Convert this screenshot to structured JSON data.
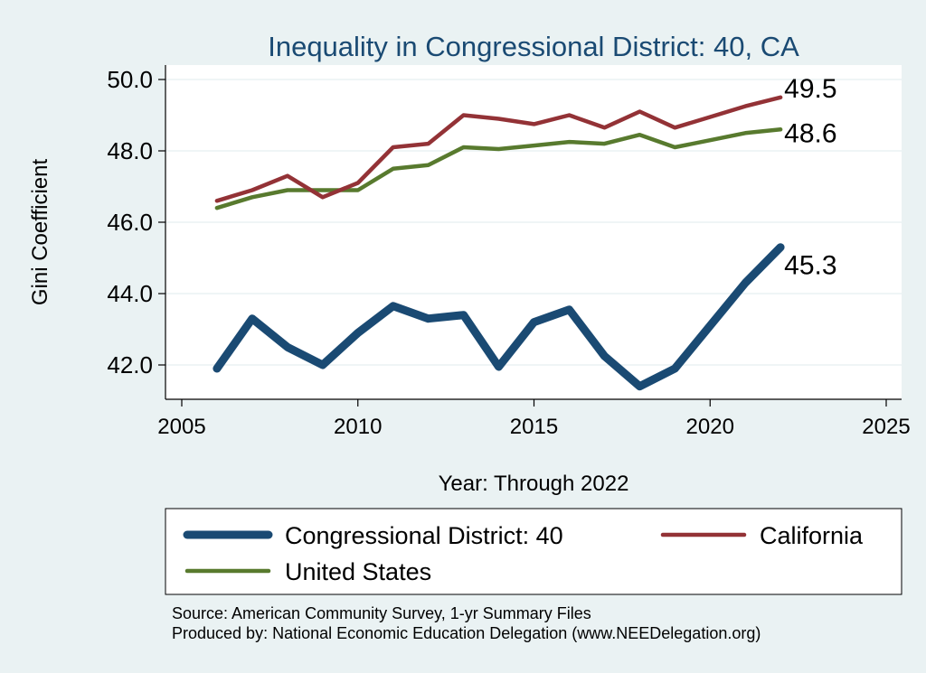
{
  "chart_data": {
    "type": "line",
    "title": "Inequality in Congressional District:  40, CA",
    "xlabel": "Year: Through 2022",
    "ylabel": "Gini Coefficient",
    "xlim": [
      2005,
      2025
    ],
    "ylim": [
      41.0,
      50.6
    ],
    "xticks": [
      2005,
      2010,
      2015,
      2020,
      2025
    ],
    "yticks": [
      42.0,
      44.0,
      46.0,
      48.0,
      50.0
    ],
    "ytick_labels": [
      "42.0",
      "44.0",
      "46.0",
      "48.0",
      "50.0"
    ],
    "grid": true,
    "x": [
      2006,
      2007,
      2008,
      2009,
      2010,
      2011,
      2012,
      2013,
      2014,
      2015,
      2016,
      2017,
      2018,
      2019,
      2020,
      2021,
      2022
    ],
    "series": [
      {
        "name": "Congressional District:  40",
        "color": "#1a4a73",
        "values": [
          41.9,
          43.3,
          42.5,
          42.0,
          42.9,
          43.65,
          43.3,
          43.4,
          41.95,
          43.2,
          43.55,
          42.25,
          41.4,
          41.9,
          43.1,
          44.3,
          45.3
        ],
        "end_label": "45.3"
      },
      {
        "name": "California",
        "color": "#933236",
        "values": [
          46.6,
          46.9,
          47.3,
          46.7,
          47.1,
          48.1,
          48.2,
          49.0,
          48.9,
          48.75,
          49.0,
          48.65,
          49.1,
          48.65,
          48.95,
          49.25,
          49.5
        ],
        "end_label": "49.5"
      },
      {
        "name": "United States",
        "color": "#587a2e",
        "values": [
          46.4,
          46.7,
          46.9,
          46.9,
          46.9,
          47.5,
          47.6,
          48.1,
          48.05,
          48.15,
          48.25,
          48.2,
          48.45,
          48.1,
          48.3,
          48.5,
          48.6
        ],
        "end_label": "48.6"
      }
    ],
    "legend": [
      {
        "label": "Congressional District:  40",
        "color": "#1a4a73"
      },
      {
        "label": "California",
        "color": "#933236"
      },
      {
        "label": "United States",
        "color": "#587a2e"
      }
    ],
    "legend_position": "bottom"
  },
  "footer": {
    "source": "Source: American Community Survey, 1-yr Summary Files",
    "produced": "Produced by: National Economic Education Delegation (www.NEEDelegation.org)"
  }
}
